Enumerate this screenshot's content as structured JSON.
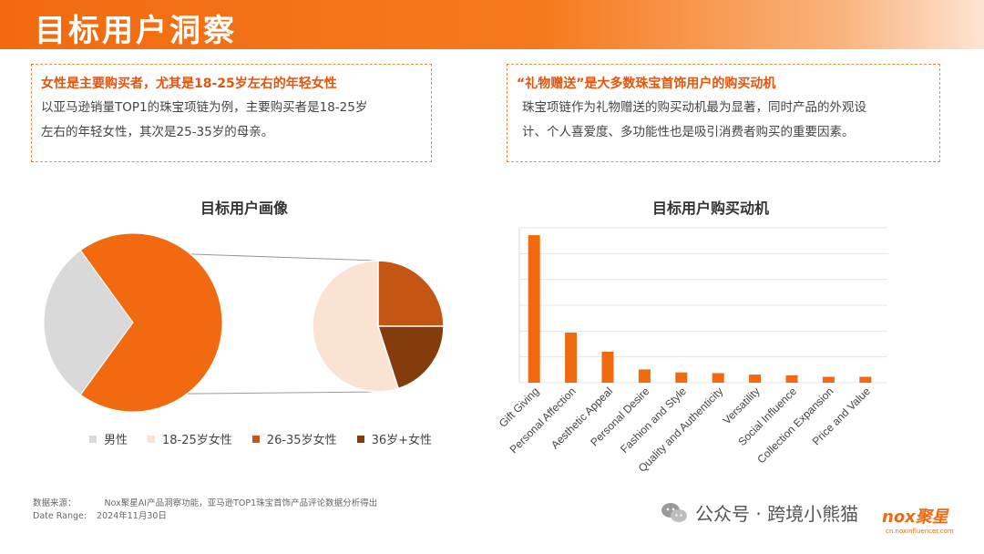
{
  "header": {
    "title": "目标用户洞察"
  },
  "cards": {
    "left": {
      "title": "女性是主要购买者，尤其是18-25岁左右的年轻女性",
      "line1": "以亚马逊销量TOP1的珠宝项链为例，主要购买者是18-25岁",
      "line2": "左右的年轻女性，其次是25-35岁的母亲。"
    },
    "right": {
      "title": "“礼物赠送”是大多数珠宝首饰用户的购买动机",
      "line1": "珠宝项链作为礼物赠送的购买动机最为显著，同时产品的外观设",
      "line2": "计、个人喜爱度、多功能性也是吸引消费者购买的重要因素。"
    }
  },
  "chart_data": [
    {
      "type": "pie",
      "title": "目标用户画像",
      "main_pie": [
        {
          "label": "男性",
          "value": 30,
          "color": "#d9d9d9"
        },
        {
          "label": "女性",
          "value": 70,
          "color": "#f26a10"
        }
      ],
      "breakdown_pie": [
        {
          "label": "18-25岁女性",
          "value": 55,
          "color": "#fbe3d4"
        },
        {
          "label": "26-35岁女性",
          "value": 25,
          "color": "#c55512"
        },
        {
          "label": "36岁+女性",
          "value": 20,
          "color": "#843c0c"
        }
      ],
      "legend": [
        {
          "label": "男性",
          "color": "#d9d9d9"
        },
        {
          "label": "18-25岁女性",
          "color": "#fbe3d4"
        },
        {
          "label": "26-35岁女性",
          "color": "#c55512"
        },
        {
          "label": "36岁+女性",
          "color": "#843c0c"
        }
      ]
    },
    {
      "type": "bar",
      "title": "目标用户购买动机",
      "categories": [
        "Gift Giving",
        "Personal Affection",
        "Aesthetic Appeal",
        "Personal Desire",
        "Fashion and Style",
        "Quality and Authenticity",
        "Versatility",
        "Social Influence",
        "Collection Expansion",
        "Price and Value"
      ],
      "values": [
        100,
        34,
        21,
        9,
        7,
        6.5,
        5.5,
        5,
        4,
        4
      ],
      "color": "#f26a10",
      "ylim": [
        0,
        105
      ],
      "grid": true
    }
  ],
  "footer": {
    "source_label": "数据来源：",
    "source_text": "Nox聚星AI产品洞察功能，亚马逊TOP1珠宝首饰产品评论数据分析得出",
    "date_label": "Date Range:",
    "date_value": "2024年11月30日"
  },
  "watermark": {
    "text": "公众号 · 跨境小熊猫",
    "icon": "wechat-icon"
  },
  "logo": {
    "text": "nox聚星",
    "sub": "cn.noxinfluencer.com"
  }
}
